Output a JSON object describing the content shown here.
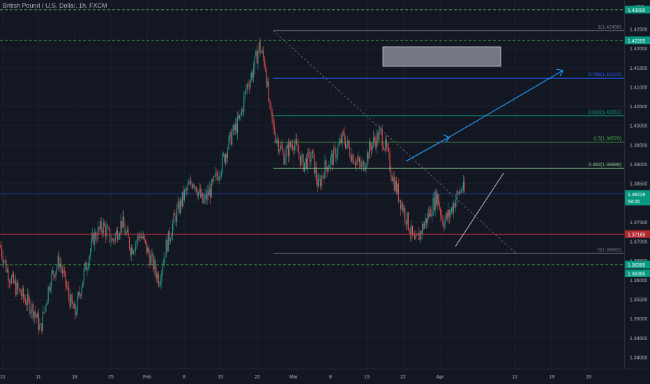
{
  "header": {
    "symbol_title": "British Pound / U.S. Dollar, 1h, FXCM",
    "currency": "USD"
  },
  "colors": {
    "background": "#131722",
    "up": "#26a69a",
    "down": "#ef5350",
    "axis_text": "#b2b5be",
    "green_dashed": "#4caf50",
    "blue_line": "#2962ff",
    "arrow_blue": "#2196f3",
    "fib_gray": "#787b86",
    "fib_blue": "#2962ff",
    "fib_teal": "#089981",
    "fib_green": "#4caf50",
    "fib_light_green": "#81c784",
    "red_line": "#f23645",
    "price_green": "#089981",
    "price_red": "#b22833"
  },
  "chart_data": {
    "type": "candlestick",
    "title": "British Pound / U.S. Dollar, 1h, FXCM",
    "ylabel": "USD",
    "ylim": [
      1.337,
      1.4325
    ],
    "y_ticks": [
      "1.43000",
      "1.42500",
      "1.42000",
      "1.41500",
      "1.41000",
      "1.40500",
      "1.40000",
      "1.39500",
      "1.39000",
      "1.38500",
      "1.38000",
      "1.37500",
      "1.37000",
      "1.36500",
      "1.36000",
      "1.35500",
      "1.35000",
      "1.34500",
      "1.34000"
    ],
    "x_ticks": [
      "21",
      "11",
      "18",
      "25",
      "Feb",
      "8",
      "15",
      "22",
      "Mar",
      "8",
      "15",
      "22",
      "Apr",
      "12",
      "19",
      "26"
    ],
    "price_path": [
      [
        0,
        1.369
      ],
      [
        0.012,
        1.362
      ],
      [
        0.025,
        1.358
      ],
      [
        0.04,
        1.355
      ],
      [
        0.055,
        1.352
      ],
      [
        0.065,
        1.347
      ],
      [
        0.08,
        1.36
      ],
      [
        0.095,
        1.365
      ],
      [
        0.11,
        1.356
      ],
      [
        0.12,
        1.351
      ],
      [
        0.135,
        1.362
      ],
      [
        0.15,
        1.371
      ],
      [
        0.165,
        1.374
      ],
      [
        0.18,
        1.37
      ],
      [
        0.195,
        1.375
      ],
      [
        0.21,
        1.368
      ],
      [
        0.225,
        1.372
      ],
      [
        0.24,
        1.366
      ],
      [
        0.255,
        1.36
      ],
      [
        0.265,
        1.368
      ],
      [
        0.28,
        1.376
      ],
      [
        0.295,
        1.382
      ],
      [
        0.31,
        1.386
      ],
      [
        0.325,
        1.38
      ],
      [
        0.34,
        1.384
      ],
      [
        0.355,
        1.39
      ],
      [
        0.37,
        1.397
      ],
      [
        0.385,
        1.402
      ],
      [
        0.395,
        1.41
      ],
      [
        0.405,
        1.414
      ],
      [
        0.415,
        1.4205
      ],
      [
        0.425,
        1.416
      ],
      [
        0.432,
        1.404
      ],
      [
        0.44,
        1.398
      ],
      [
        0.455,
        1.392
      ],
      [
        0.47,
        1.396
      ],
      [
        0.485,
        1.39
      ],
      [
        0.5,
        1.392
      ],
      [
        0.51,
        1.384
      ],
      [
        0.52,
        1.389
      ],
      [
        0.535,
        1.392
      ],
      [
        0.55,
        1.397
      ],
      [
        0.565,
        1.392
      ],
      [
        0.58,
        1.389
      ],
      [
        0.595,
        1.395
      ],
      [
        0.61,
        1.398
      ],
      [
        0.62,
        1.393
      ],
      [
        0.63,
        1.386
      ],
      [
        0.645,
        1.379
      ],
      [
        0.655,
        1.374
      ],
      [
        0.665,
        1.369
      ],
      [
        0.675,
        1.373
      ],
      [
        0.69,
        1.378
      ],
      [
        0.7,
        1.382
      ],
      [
        0.71,
        1.375
      ],
      [
        0.72,
        1.377
      ],
      [
        0.73,
        1.381
      ],
      [
        0.74,
        1.384
      ],
      [
        0.745,
        1.3823
      ]
    ],
    "horizontal_levels": [
      {
        "price": 1.43,
        "style": "green-dashed"
      },
      {
        "price": 1.42205,
        "style": "green-dashed"
      },
      {
        "price": 1.36395,
        "style": "green-dashed"
      },
      {
        "price": 1.37185,
        "style": "red-solid"
      },
      {
        "price": 1.38226,
        "style": "blue-solid"
      }
    ],
    "fibonacci": [
      {
        "label": "1(1.42458)",
        "price": 1.42458,
        "color": "#787b86"
      },
      {
        "label": "0.786(1.41222)",
        "price": 1.41222,
        "color": "#2962ff"
      },
      {
        "label": "0.618(1.40251)",
        "price": 1.40251,
        "color": "#089981"
      },
      {
        "label": "0.5(1.39570)",
        "price": 1.3957,
        "color": "#4caf50"
      },
      {
        "label": "0.382(1.38888)",
        "price": 1.38888,
        "color": "#81c784"
      },
      {
        "label": "0(1.36682)",
        "price": 1.36682,
        "color": "#787b86"
      }
    ],
    "price_labels": [
      {
        "text": "1.43000",
        "price": 1.43,
        "kind": "green"
      },
      {
        "text": "1.42205",
        "price": 1.42205,
        "kind": "green"
      },
      {
        "text": "1.38226",
        "price": 1.38226,
        "kind": "current",
        "sub": "58:05"
      },
      {
        "text": "1.37185",
        "price": 1.37185,
        "kind": "red"
      },
      {
        "text": "1.36395",
        "price": 1.36395,
        "kind": "green"
      },
      {
        "text": "1.36395",
        "price": 1.3617,
        "kind": "green"
      }
    ]
  }
}
